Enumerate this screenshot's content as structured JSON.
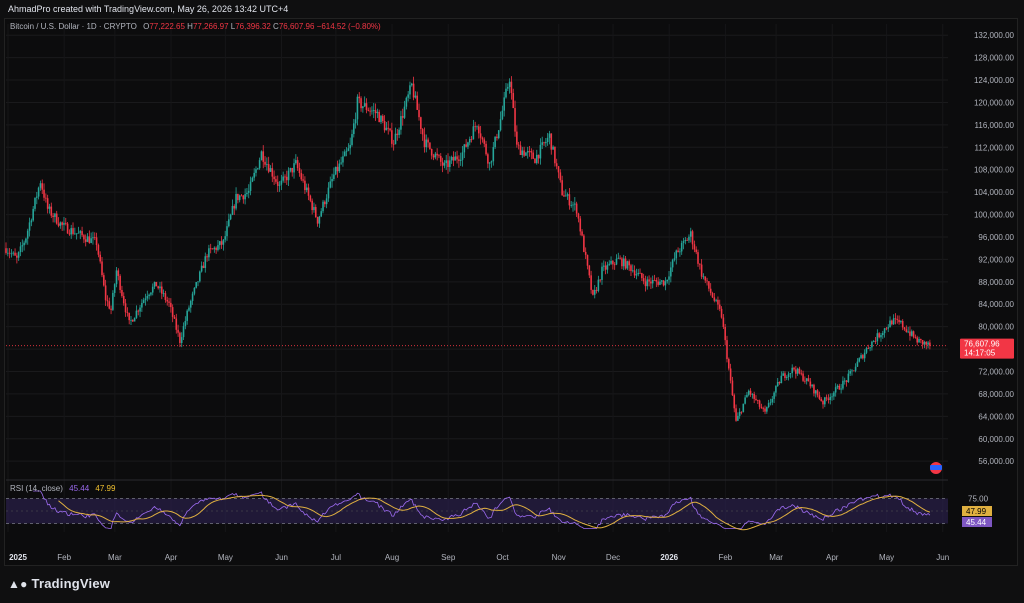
{
  "header": {
    "attribution": "AhmadPro created with TradingView.com, May 26, 2026 13:42 UTC+4"
  },
  "legend": {
    "symbol": "Bitcoin / U.S. Dollar · 1D · CRYPTO",
    "open_label": "O",
    "open": "77,222.65",
    "high_label": "H",
    "high": "77,266.97",
    "low_label": "L",
    "low": "76,396.32",
    "close_label": "C",
    "close": "76,607.96",
    "change": "−614.52 (−0.80%)"
  },
  "price_badge": {
    "price": "76,607.96",
    "countdown": "14:17:05"
  },
  "rsi": {
    "label": "RSI (14, close)",
    "rsi_value": "45.44",
    "ma_value": "47.99",
    "levels": [
      "75.00",
      "25.00"
    ]
  },
  "footer": {
    "brand": "TradingView"
  },
  "colors": {
    "up": "#26a69a",
    "down": "#f23645",
    "rsi_line": "#9c6bf0",
    "rsi_ma": "#e0b040",
    "rsi_fill": "#2a1f4a"
  },
  "chart_data": {
    "type": "candlestick",
    "title": "Bitcoin / U.S. Dollar · 1D · CRYPTO",
    "y_ticks": [
      "132,000.00",
      "128,000.00",
      "124,000.00",
      "120,000.00",
      "116,000.00",
      "112,000.00",
      "108,000.00",
      "104,000.00",
      "100,000.00",
      "96,000.00",
      "92,000.00",
      "88,000.00",
      "84,000.00",
      "80,000.00",
      "76,000.00",
      "72,000.00",
      "68,000.00",
      "64,000.00",
      "60,000.00",
      "56,000.00"
    ],
    "y_range": [
      53000,
      134000
    ],
    "x_ticks": [
      "2025",
      "Feb",
      "Mar",
      "Apr",
      "May",
      "Jun",
      "Jul",
      "Aug",
      "Sep",
      "Oct",
      "Nov",
      "Dec",
      "2026",
      "Feb",
      "Mar",
      "Apr",
      "May",
      "Jun"
    ],
    "anchors": [
      [
        "2025-01-01",
        94000
      ],
      [
        "2025-01-07",
        92000
      ],
      [
        "2025-01-12",
        96000
      ],
      [
        "2025-01-20",
        106000
      ],
      [
        "2025-01-24",
        101000
      ],
      [
        "2025-02-01",
        98000
      ],
      [
        "2025-02-10",
        96500
      ],
      [
        "2025-02-20",
        95000
      ],
      [
        "2025-02-25",
        85000
      ],
      [
        "2025-02-28",
        83000
      ],
      [
        "2025-03-03",
        90000
      ],
      [
        "2025-03-10",
        80500
      ],
      [
        "2025-03-20",
        86000
      ],
      [
        "2025-03-25",
        87500
      ],
      [
        "2025-04-01",
        84000
      ],
      [
        "2025-04-07",
        77500
      ],
      [
        "2025-04-12",
        83500
      ],
      [
        "2025-04-22",
        93000
      ],
      [
        "2025-05-01",
        95000
      ],
      [
        "2025-05-08",
        103000
      ],
      [
        "2025-05-15",
        104000
      ],
      [
        "2025-05-22",
        111000
      ],
      [
        "2025-06-01",
        105000
      ],
      [
        "2025-06-10",
        109000
      ],
      [
        "2025-06-22",
        99000
      ],
      [
        "2025-07-01",
        107000
      ],
      [
        "2025-07-10",
        112000
      ],
      [
        "2025-07-14",
        120000
      ],
      [
        "2025-07-25",
        118000
      ],
      [
        "2025-08-03",
        113000
      ],
      [
        "2025-08-13",
        123000
      ],
      [
        "2025-08-20",
        113000
      ],
      [
        "2025-08-31",
        108500
      ],
      [
        "2025-09-10",
        111000
      ],
      [
        "2025-09-18",
        116500
      ],
      [
        "2025-09-25",
        109000
      ],
      [
        "2025-10-01",
        117000
      ],
      [
        "2025-10-06",
        124500
      ],
      [
        "2025-10-10",
        112000
      ],
      [
        "2025-10-20",
        110000
      ],
      [
        "2025-10-28",
        114000
      ],
      [
        "2025-11-04",
        104000
      ],
      [
        "2025-11-12",
        101000
      ],
      [
        "2025-11-21",
        85000
      ],
      [
        "2025-11-26",
        90000
      ],
      [
        "2025-12-05",
        92000
      ],
      [
        "2025-12-12",
        90500
      ],
      [
        "2025-12-20",
        88000
      ],
      [
        "2025-12-31",
        88000
      ],
      [
        "2026-01-06",
        93000
      ],
      [
        "2026-01-14",
        96500
      ],
      [
        "2026-01-20",
        89500
      ],
      [
        "2026-01-31",
        82000
      ],
      [
        "2026-02-05",
        70000
      ],
      [
        "2026-02-08",
        63000
      ],
      [
        "2026-02-15",
        68500
      ],
      [
        "2026-02-24",
        64500
      ],
      [
        "2026-03-05",
        71000
      ],
      [
        "2026-03-12",
        72500
      ],
      [
        "2026-03-20",
        70000
      ],
      [
        "2026-03-28",
        66500
      ],
      [
        "2026-04-10",
        70500
      ],
      [
        "2026-04-22",
        76500
      ],
      [
        "2026-05-05",
        81000
      ],
      [
        "2026-05-10",
        80500
      ],
      [
        "2026-05-19",
        77500
      ],
      [
        "2026-05-26",
        76608
      ]
    ],
    "rsi_levels": [
      75,
      25
    ],
    "rsi_last": 45.44,
    "rsi_ma_last": 47.99
  }
}
